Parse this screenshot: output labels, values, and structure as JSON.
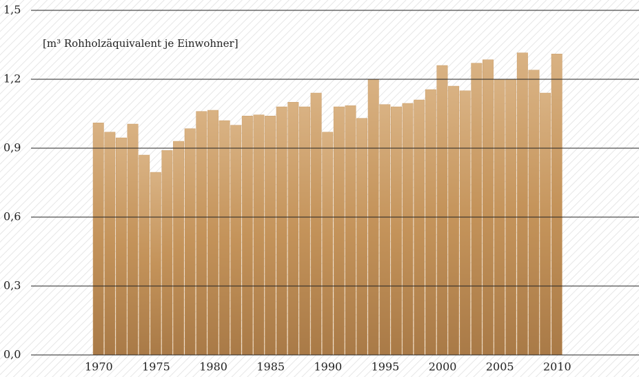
{
  "chart_data": {
    "type": "bar",
    "subtitle": "[m³ Rohholzäquivalent je Einwohner]",
    "categories": [
      "1970",
      null,
      null,
      null,
      null,
      "1975",
      null,
      null,
      null,
      null,
      "1980",
      null,
      null,
      null,
      null,
      "1985",
      null,
      null,
      null,
      null,
      "1990",
      null,
      null,
      null,
      null,
      "1995",
      null,
      null,
      null,
      null,
      "2000",
      null,
      null,
      null,
      null,
      "2005",
      null,
      null,
      null,
      null,
      "2010"
    ],
    "values": [
      1.01,
      0.97,
      0.945,
      1.005,
      0.87,
      0.795,
      0.89,
      0.93,
      0.985,
      1.06,
      1.065,
      1.02,
      1.0,
      1.04,
      1.045,
      1.04,
      1.08,
      1.1,
      1.08,
      1.14,
      0.97,
      1.08,
      1.085,
      1.03,
      1.2,
      1.09,
      1.08,
      1.095,
      1.11,
      1.155,
      1.26,
      1.17,
      1.15,
      1.27,
      1.285,
      1.2,
      1.2,
      1.315,
      1.24,
      1.14,
      1.31
    ],
    "color": "#c99a63",
    "ylim": [
      0,
      1.5
    ],
    "yticks": [
      {
        "value": 0,
        "label": "0,0"
      },
      {
        "value": 0.3,
        "label": "0,3"
      },
      {
        "value": 0.6,
        "label": "0,6"
      },
      {
        "value": 0.9,
        "label": "0,9"
      },
      {
        "value": 1.2,
        "label": "1,2"
      },
      {
        "value": 1.5,
        "label": "1,5"
      }
    ],
    "grid": true
  }
}
